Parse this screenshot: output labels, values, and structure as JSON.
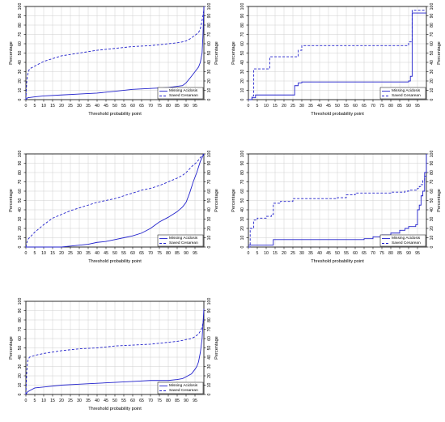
{
  "colors": {
    "series": "#2222cc",
    "grid": "#cfcfcf",
    "axis": "#000000"
  },
  "chart_data": [
    {
      "type": "line",
      "xlabel": "Threshold probability point",
      "ylabel_left": "Percentage",
      "ylabel_right": "Percentage",
      "xlim": [
        0,
        100
      ],
      "ylim": [
        0,
        100
      ],
      "xticks": [
        "0",
        "5",
        "10",
        "15",
        "20",
        "25",
        "30",
        "35",
        "40",
        "45",
        "50",
        "55",
        "60",
        "65",
        "70",
        "75",
        "80",
        "85",
        "90",
        "95"
      ],
      "yticks": [
        "0",
        "10",
        "20",
        "30",
        "40",
        "50",
        "60",
        "70",
        "80",
        "90",
        "100"
      ],
      "legend": {
        "position": "bottom-right",
        "entries": [
          "Missing Acidosis",
          "Saved Cesarean"
        ]
      },
      "series": [
        {
          "name": "Missing Acidosis",
          "style": "solid",
          "x": [
            0,
            1,
            5,
            10,
            20,
            30,
            40,
            50,
            60,
            70,
            80,
            88,
            90,
            93,
            95,
            97,
            98,
            99,
            99.5,
            100
          ],
          "y": [
            0,
            2,
            3,
            4,
            5,
            6,
            7,
            9,
            11,
            12,
            13,
            15,
            18,
            25,
            30,
            35,
            40,
            50,
            70,
            100
          ]
        },
        {
          "name": "Saved Cesarean",
          "style": "dashed",
          "x": [
            0,
            0.5,
            1,
            2,
            5,
            10,
            15,
            20,
            30,
            40,
            50,
            60,
            70,
            80,
            85,
            88,
            90,
            92,
            95,
            97,
            98,
            99,
            100
          ],
          "y": [
            0,
            20,
            27,
            33,
            36,
            41,
            44,
            47,
            50,
            53,
            55,
            57,
            58,
            60,
            61,
            62,
            63,
            65,
            69,
            72,
            76,
            85,
            96
          ]
        }
      ]
    },
    {
      "type": "line",
      "xlabel": "Threshold probability point",
      "ylabel_left": "Percentage",
      "ylabel_right": "Percentage",
      "xlim": [
        0,
        100
      ],
      "ylim": [
        0,
        100
      ],
      "xticks": [
        "0",
        "5",
        "10",
        "15",
        "20",
        "25",
        "30",
        "35",
        "40",
        "45",
        "50",
        "55",
        "60",
        "65",
        "70",
        "75",
        "80",
        "85",
        "90",
        "95"
      ],
      "yticks": [
        "0",
        "10",
        "20",
        "30",
        "40",
        "50",
        "60",
        "70",
        "80",
        "90",
        "100"
      ],
      "legend": {
        "position": "bottom-right",
        "entries": [
          "Missing Acidosis",
          "Saved Cesarean"
        ]
      },
      "series": [
        {
          "name": "Missing Acidosis",
          "style": "solid",
          "step": true,
          "x": [
            0,
            2,
            4,
            25,
            26,
            28,
            30,
            88,
            90,
            91,
            92,
            100
          ],
          "y": [
            0,
            2,
            5,
            5,
            15,
            18,
            19,
            19,
            20,
            25,
            93,
            93
          ]
        },
        {
          "name": "Saved Cesarean",
          "style": "dashed",
          "step": true,
          "x": [
            0,
            2,
            3,
            11,
            12,
            25,
            28,
            30,
            88,
            90,
            92,
            100
          ],
          "y": [
            0,
            4,
            33,
            33,
            46,
            46,
            53,
            58,
            58,
            62,
            96,
            96
          ]
        }
      ]
    },
    {
      "type": "line",
      "xlabel": "Threshold probability point",
      "ylabel_left": "Percentage",
      "ylabel_right": "Percentage",
      "xlim": [
        0,
        100
      ],
      "ylim": [
        0,
        100
      ],
      "xticks": [
        "0",
        "5",
        "10",
        "15",
        "20",
        "25",
        "30",
        "35",
        "40",
        "45",
        "50",
        "55",
        "60",
        "65",
        "70",
        "75",
        "80",
        "85",
        "90",
        "95"
      ],
      "yticks": [
        "0",
        "10",
        "20",
        "30",
        "40",
        "50",
        "60",
        "70",
        "80",
        "90",
        "100"
      ],
      "legend": {
        "position": "bottom-right",
        "entries": [
          "Missing Acidosis",
          "Saved Cesarean"
        ]
      },
      "series": [
        {
          "name": "Missing Acidosis",
          "style": "solid",
          "x": [
            0,
            10,
            20,
            25,
            30,
            35,
            40,
            45,
            50,
            55,
            60,
            65,
            70,
            75,
            80,
            85,
            88,
            90,
            92,
            94,
            96,
            98,
            100
          ],
          "y": [
            0,
            0,
            0,
            1,
            2,
            3,
            5,
            6,
            8,
            10,
            12,
            15,
            20,
            27,
            32,
            38,
            43,
            48,
            58,
            70,
            80,
            92,
            100
          ]
        },
        {
          "name": "Saved Cesarean",
          "style": "dashed",
          "x": [
            0,
            1,
            3,
            5,
            10,
            15,
            20,
            25,
            30,
            35,
            40,
            45,
            50,
            55,
            60,
            65,
            70,
            75,
            80,
            85,
            88,
            90,
            92,
            94,
            96,
            98,
            100
          ],
          "y": [
            0,
            8,
            12,
            16,
            24,
            31,
            35,
            39,
            42,
            45,
            48,
            50,
            52,
            55,
            58,
            61,
            63,
            66,
            70,
            74,
            77,
            80,
            84,
            88,
            91,
            96,
            100
          ]
        }
      ]
    },
    {
      "type": "line",
      "xlabel": "Threshold probability point",
      "ylabel_left": "Percentage",
      "ylabel_right": "Percentage",
      "xlim": [
        0,
        100
      ],
      "ylim": [
        0,
        100
      ],
      "xticks": [
        "0",
        "5",
        "10",
        "15",
        "20",
        "25",
        "30",
        "35",
        "40",
        "45",
        "50",
        "55",
        "60",
        "65",
        "70",
        "75",
        "80",
        "85",
        "90",
        "95"
      ],
      "yticks": [
        "0",
        "10",
        "20",
        "30",
        "40",
        "50",
        "60",
        "70",
        "80",
        "90",
        "100"
      ],
      "legend": {
        "position": "bottom-right",
        "entries": [
          "Missing Acidosis",
          "Saved Cesarean"
        ]
      },
      "series": [
        {
          "name": "Missing Acidosis",
          "style": "solid",
          "step": true,
          "x": [
            0,
            13,
            14,
            60,
            65,
            70,
            75,
            80,
            85,
            88,
            90,
            94,
            95,
            96,
            97,
            98,
            99,
            100
          ],
          "y": [
            2,
            2,
            8,
            8,
            9,
            11,
            13,
            15,
            18,
            20,
            22,
            24,
            40,
            45,
            55,
            60,
            80,
            100
          ]
        },
        {
          "name": "Saved Cesarean",
          "style": "dashed",
          "step": true,
          "x": [
            0,
            1,
            3,
            5,
            10,
            13,
            14,
            18,
            25,
            40,
            50,
            55,
            60,
            70,
            80,
            88,
            90,
            95,
            96,
            97,
            98,
            99,
            100
          ],
          "y": [
            0,
            20,
            29,
            31,
            33,
            35,
            47,
            49,
            52,
            52,
            53,
            56,
            58,
            58,
            59,
            60,
            61,
            63,
            65,
            67,
            72,
            76,
            78
          ]
        }
      ]
    },
    {
      "type": "line",
      "xlabel": "Threshold probability point",
      "ylabel_left": "Percentage",
      "ylabel_right": "Percentage",
      "xlim": [
        0,
        100
      ],
      "ylim": [
        0,
        100
      ],
      "xticks": [
        "0",
        "5",
        "10",
        "15",
        "20",
        "25",
        "30",
        "35",
        "40",
        "45",
        "50",
        "55",
        "60",
        "65",
        "70",
        "75",
        "80",
        "85",
        "90",
        "95"
      ],
      "yticks": [
        "0",
        "10",
        "20",
        "30",
        "40",
        "50",
        "60",
        "70",
        "80",
        "90",
        "100"
      ],
      "legend": {
        "position": "bottom-right",
        "entries": [
          "Missing Acidosis",
          "Saved Cesarean"
        ]
      },
      "series": [
        {
          "name": "Missing Acidosis",
          "style": "solid",
          "x": [
            0,
            1,
            3,
            5,
            10,
            20,
            30,
            40,
            50,
            60,
            70,
            80,
            85,
            88,
            90,
            93,
            95,
            96,
            97,
            98,
            99,
            100
          ],
          "y": [
            0,
            3,
            5,
            7,
            8,
            10,
            11,
            12,
            13,
            14,
            15,
            15,
            16,
            17,
            19,
            22,
            27,
            30,
            35,
            45,
            60,
            92
          ]
        },
        {
          "name": "Saved Cesarean",
          "style": "dashed",
          "x": [
            0,
            0.5,
            1,
            2,
            5,
            10,
            20,
            30,
            40,
            50,
            60,
            70,
            80,
            85,
            88,
            90,
            93,
            95,
            97,
            98,
            99,
            100
          ],
          "y": [
            0,
            25,
            36,
            40,
            42,
            44,
            47,
            49,
            50,
            52,
            53,
            54,
            56,
            57,
            58,
            59,
            60,
            62,
            65,
            68,
            72,
            82
          ]
        }
      ]
    }
  ]
}
